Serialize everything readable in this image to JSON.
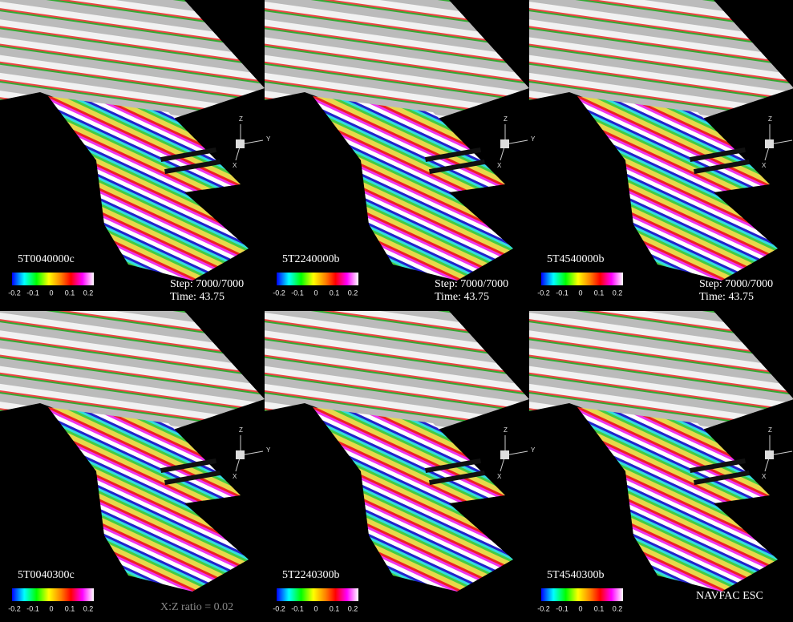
{
  "panels": [
    {
      "label": "5T0040000c",
      "step": "Step: 7000/7000",
      "time": "Time: 43.75"
    },
    {
      "label": "5T2240000b",
      "step": "Step: 7000/7000",
      "time": "Time: 43.75"
    },
    {
      "label": "5T4540000b",
      "step": "Step: 7000/7000",
      "time": "Time: 43.75"
    },
    {
      "label": "5T0040300c"
    },
    {
      "label": "5T2240300b"
    },
    {
      "label": "5T4540300b"
    }
  ],
  "colorbar_ticks": [
    "-0.2",
    "-0.1",
    "0",
    "0.1",
    "0.2"
  ],
  "axis_labels": [
    "Z",
    "Y",
    "X"
  ],
  "ratio_note": "X:Z ratio = 0.02",
  "credit": "NAVFAC ESC"
}
